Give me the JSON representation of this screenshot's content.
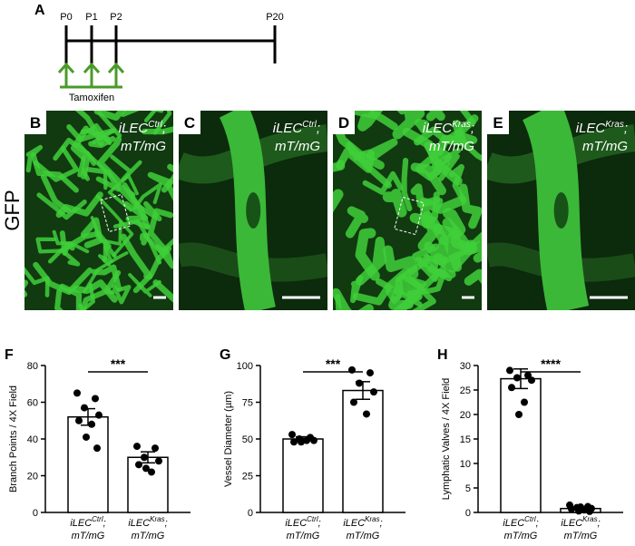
{
  "timeline": {
    "panel": "A",
    "labels": [
      "P0",
      "P1",
      "P2",
      "P20"
    ],
    "treatment": "Tamoxifen"
  },
  "images": {
    "stain": "GFP",
    "panels": [
      {
        "label": "B",
        "genotype": "iLEC",
        "sup": "Ctrl",
        "tail": ";",
        "line2": "mT/mG"
      },
      {
        "label": "C",
        "genotype": "iLEC",
        "sup": "Ctrl",
        "tail": ";",
        "line2": "mT/mG"
      },
      {
        "label": "D",
        "genotype": "iLEC",
        "sup": "Kras",
        "tail": ";",
        "line2": "mT/mG"
      },
      {
        "label": "E",
        "genotype": "iLEC",
        "sup": "Kras",
        "tail": ";",
        "line2": "mT/mG"
      }
    ]
  },
  "chart_data": [
    {
      "type": "bar",
      "panel": "F",
      "ylabel": "Branch Points / 4X Field",
      "categories": [
        {
          "text": "iLEC",
          "sup": "Ctrl",
          "tail": ";",
          "line2": "mT/mG"
        },
        {
          "text": "iLEC",
          "sup": "Kras",
          "tail": ";",
          "line2": "mT/mG"
        }
      ],
      "values": [
        52,
        30
      ],
      "errors": [
        4.5,
        3
      ],
      "points": [
        [
          65,
          62,
          57,
          53,
          50,
          48,
          41,
          35
        ],
        [
          36,
          35,
          30,
          28,
          26,
          22,
          24
        ]
      ],
      "color": "#ffffff",
      "point_color": "#000000",
      "ylim": [
        0,
        80
      ],
      "yticks": [
        0,
        20,
        40,
        60,
        80
      ],
      "significance": "***"
    },
    {
      "type": "bar",
      "panel": "G",
      "ylabel": "Vessel Diameter (µm)",
      "categories": [
        {
          "text": "iLEC",
          "sup": "Ctrl",
          "tail": ";",
          "line2": "mT/mG"
        },
        {
          "text": "iLEC",
          "sup": "Kras",
          "tail": ";",
          "line2": "mT/mG"
        }
      ],
      "values": [
        50,
        83
      ],
      "errors": [
        1.5,
        6
      ],
      "points": [
        [
          53,
          51,
          50,
          49,
          48,
          49,
          48
        ],
        [
          97,
          95,
          88,
          82,
          75,
          67
        ]
      ],
      "color": "#ffffff",
      "point_color": "#000000",
      "ylim": [
        0,
        100
      ],
      "yticks": [
        0,
        25,
        50,
        75,
        100
      ],
      "significance": "***"
    },
    {
      "type": "bar",
      "panel": "H",
      "ylabel": "Lymphatic Valves / 4X Field",
      "categories": [
        {
          "text": "iLEC",
          "sup": "Ctrl",
          "tail": ";",
          "line2": "mT/mG"
        },
        {
          "text": "iLEC",
          "sup": "Kras",
          "tail": ";",
          "line2": "mT/mG"
        }
      ],
      "values": [
        27.3,
        0.8
      ],
      "errors": [
        2,
        0.3
      ],
      "points": [
        [
          29,
          28,
          27.5,
          27,
          25.5,
          22.5,
          20
        ],
        [
          1.5,
          1.2,
          1,
          0.8,
          0.7,
          0.5,
          0.3,
          0.2,
          1.1
        ]
      ],
      "color": "#ffffff",
      "point_color": "#000000",
      "ylim": [
        0,
        30
      ],
      "yticks": [
        0,
        5,
        10,
        15,
        20,
        25,
        30
      ],
      "significance": "****"
    }
  ]
}
